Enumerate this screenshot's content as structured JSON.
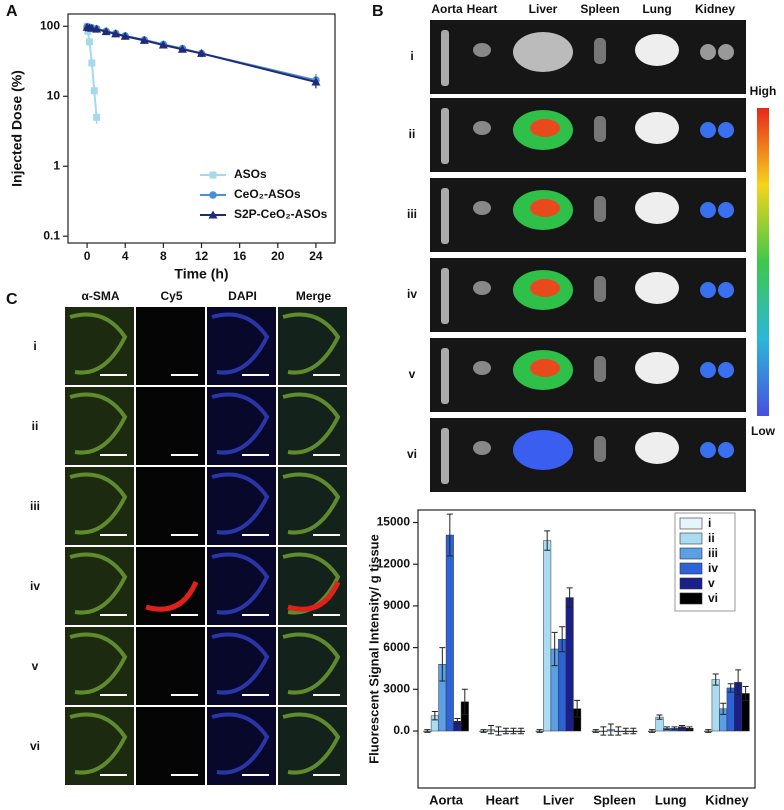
{
  "chart_data": [
    {
      "type": "line",
      "xlabel": "Time (h)",
      "ylabel": "Injected Dose (%)",
      "xlim": [
        -2,
        26
      ],
      "xticks": [
        0,
        4,
        8,
        12,
        16,
        20,
        24
      ],
      "ylim": [
        0.08,
        150
      ],
      "yticks": [
        0.1,
        1,
        10,
        100
      ],
      "log_y": true,
      "series": [
        {
          "name": "ASOs",
          "color": "#a6d8ee",
          "marker": "square",
          "x": [
            0,
            0.083,
            0.25,
            0.5,
            0.75,
            1
          ],
          "values": [
            100,
            85,
            60,
            30,
            12,
            5
          ],
          "errors": [
            5,
            6,
            8,
            5,
            2,
            1
          ]
        },
        {
          "name": "CeO₂-ASOs",
          "color": "#4a8fda",
          "marker": "circle",
          "x": [
            0,
            0.25,
            0.5,
            1,
            2,
            3,
            4,
            6,
            8,
            10,
            12,
            24
          ],
          "values": [
            98,
            96,
            95,
            92,
            85,
            79,
            73,
            64,
            55,
            48,
            41,
            17
          ],
          "errors": [
            4,
            4,
            4,
            4,
            4,
            4,
            4,
            4,
            4,
            3,
            3,
            4
          ]
        },
        {
          "name": "S2P-CeO₂-ASOs",
          "color": "#1f2a78",
          "marker": "triangle",
          "x": [
            0,
            0.25,
            0.5,
            1,
            2,
            3,
            4,
            6,
            8,
            10,
            12,
            24
          ],
          "values": [
            97,
            95,
            94,
            91,
            84,
            78,
            72,
            63,
            54,
            47,
            41,
            16
          ],
          "errors": [
            4,
            4,
            4,
            4,
            4,
            4,
            4,
            4,
            4,
            3,
            3,
            3
          ]
        }
      ]
    },
    {
      "type": "bar",
      "ylabel": "Fluorescent Signal Intensity/ g tissue",
      "categories": [
        "Aorta",
        "Heart",
        "Liver",
        "Spleen",
        "Lung",
        "Kidney"
      ],
      "ylim": [
        -4100,
        15900
      ],
      "yticks": [
        {
          "value": 0,
          "label": "0.0"
        },
        3000,
        6000,
        9000,
        12000,
        15000
      ],
      "series": [
        {
          "name": "i",
          "color": "#e6f5fb",
          "values": [
            0,
            0,
            0,
            0,
            0,
            0
          ],
          "errors": [
            100,
            100,
            100,
            100,
            100,
            100
          ]
        },
        {
          "name": "ii",
          "color": "#a9dcf2",
          "values": [
            1100,
            100,
            13700,
            0,
            1000,
            3700
          ],
          "errors": [
            300,
            300,
            700,
            300,
            150,
            400
          ]
        },
        {
          "name": "iii",
          "color": "#5b9fe6",
          "values": [
            4800,
            0,
            5900,
            100,
            200,
            1600
          ],
          "errors": [
            1200,
            300,
            1200,
            400,
            100,
            400
          ]
        },
        {
          "name": "iv",
          "color": "#2d63d6",
          "values": [
            14100,
            0,
            6600,
            0,
            200,
            3100
          ],
          "errors": [
            1500,
            200,
            900,
            300,
            100,
            300
          ]
        },
        {
          "name": "v",
          "color": "#1b1f8a",
          "values": [
            700,
            0,
            9600,
            0,
            300,
            3500
          ],
          "errors": [
            200,
            200,
            700,
            200,
            100,
            900
          ]
        },
        {
          "name": "vi",
          "color": "#000000",
          "values": [
            2100,
            0,
            1600,
            0,
            200,
            2700
          ],
          "errors": [
            900,
            200,
            600,
            200,
            100,
            500
          ]
        }
      ]
    }
  ],
  "panel_labels": [
    "A",
    "B",
    "C"
  ],
  "imaging": {
    "organs": [
      "Aorta",
      "Heart",
      "Liver",
      "Spleen",
      "Lung",
      "Kidney"
    ],
    "rows": [
      "i",
      "ii",
      "iii",
      "iv",
      "v",
      "vi"
    ],
    "scale_high": "High",
    "scale_low": "Low"
  },
  "histology": {
    "channels": [
      "α-SMA",
      "Cy5",
      "DAPI",
      "Merge"
    ],
    "rows": [
      "i",
      "ii",
      "iii",
      "iv",
      "v",
      "vi"
    ]
  }
}
